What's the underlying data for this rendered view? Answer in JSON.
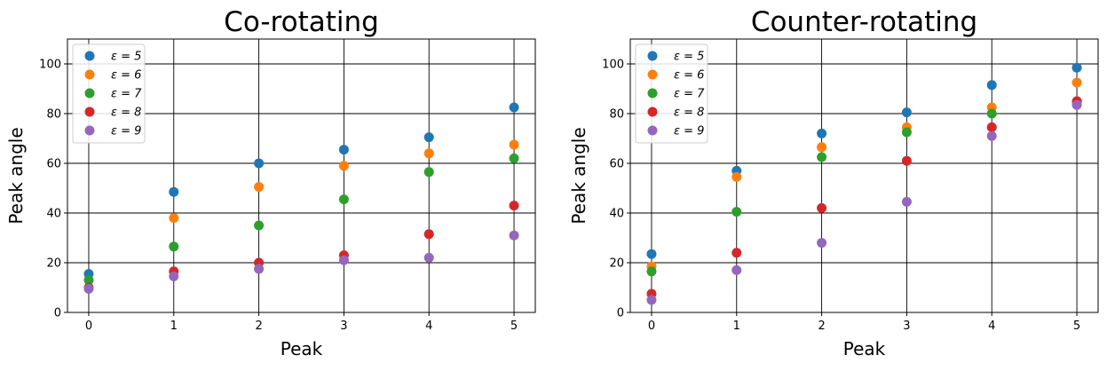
{
  "chart_data": [
    {
      "type": "scatter",
      "title": "Co-rotating",
      "xlabel": "Peak",
      "ylabel": "Peak angle",
      "x": [
        0,
        1,
        2,
        3,
        4,
        5
      ],
      "xlim": [
        -0.25,
        5.25
      ],
      "ylim": [
        0,
        110
      ],
      "xticks": [
        "0",
        "1",
        "2",
        "3",
        "4",
        "5"
      ],
      "yticks": [
        "0",
        "20",
        "40",
        "60",
        "80",
        "100"
      ],
      "grid": true,
      "legend_position": "upper-left",
      "series": [
        {
          "name": "ε = 5",
          "color": "#1f77b4",
          "values": [
            15.5,
            48.5,
            60,
            65.5,
            70.5,
            82.5
          ]
        },
        {
          "name": "ε = 6",
          "color": "#ff7f0e",
          "values": [
            10,
            38,
            50.5,
            59,
            64,
            67.5
          ]
        },
        {
          "name": "ε = 7",
          "color": "#2ca02c",
          "values": [
            13,
            26.5,
            35,
            45.5,
            56.5,
            62
          ]
        },
        {
          "name": "ε = 8",
          "color": "#d62728",
          "values": [
            10,
            16.5,
            20,
            23,
            31.5,
            43
          ]
        },
        {
          "name": "ε = 9",
          "color": "#9467bd",
          "values": [
            9.5,
            14.5,
            17.5,
            21,
            22,
            31
          ]
        }
      ]
    },
    {
      "type": "scatter",
      "title": "Counter-rotating",
      "xlabel": "Peak",
      "ylabel": "Peak angle",
      "x": [
        0,
        1,
        2,
        3,
        4,
        5
      ],
      "xlim": [
        -0.25,
        5.25
      ],
      "ylim": [
        0,
        110
      ],
      "xticks": [
        "0",
        "1",
        "2",
        "3",
        "4",
        "5"
      ],
      "yticks": [
        "0",
        "20",
        "40",
        "60",
        "80",
        "100"
      ],
      "grid": true,
      "legend_position": "upper-left",
      "series": [
        {
          "name": "ε = 5",
          "color": "#1f77b4",
          "values": [
            23.5,
            57,
            72,
            80.5,
            91.5,
            98.5
          ]
        },
        {
          "name": "ε = 6",
          "color": "#ff7f0e",
          "values": [
            18.5,
            54.5,
            66.5,
            74.5,
            82.5,
            92.5
          ]
        },
        {
          "name": "ε = 7",
          "color": "#2ca02c",
          "values": [
            16.5,
            40.5,
            62.5,
            72.5,
            80,
            84.5
          ]
        },
        {
          "name": "ε = 8",
          "color": "#d62728",
          "values": [
            7.5,
            24,
            42,
            61,
            74.5,
            85
          ]
        },
        {
          "name": "ε = 9",
          "color": "#9467bd",
          "values": [
            5,
            17,
            28,
            44.5,
            71,
            83.5
          ]
        }
      ]
    }
  ]
}
